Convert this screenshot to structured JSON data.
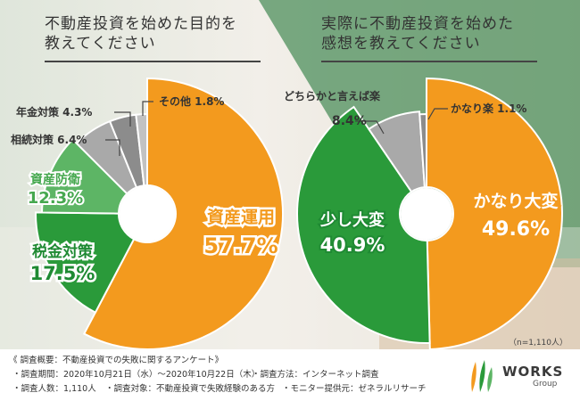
{
  "left_title": [
    "不動産投資を始めた目的を",
    "教えてください"
  ],
  "right_title": [
    "実際に不動産投資を始めた",
    "感想を教えてください"
  ],
  "n_note": "（n=1,110人）",
  "footer": {
    "line1": "《 調査概要：不動産投資での失敗に関するアンケート》",
    "line2a": "・調査期間：2020年10月21日（水）〜2020年10月22日（木）",
    "line2b": "・調査方法：インターネット調査",
    "line3a": "・調査人数：1,110人",
    "line3b": "・調査対象：不動産投資で失敗経験のある方",
    "line3c": "・モニター提供元：ゼネラルリサーチ"
  },
  "logo": {
    "word": "WORKS",
    "sub": "Group"
  },
  "colors": {
    "orange": "#f39a1e",
    "green": "#2a9a3a",
    "lightgreen": "#5db565",
    "gray": "#a9a9a9",
    "darkgray": "#8c8c8c",
    "green_panel": "#4e8f5c"
  },
  "chart_data": [
    {
      "type": "pie",
      "title": "不動産投資を始めた目的を教えてください",
      "slices": [
        {
          "label": "資産運用",
          "value": 57.7,
          "display": "57.7%",
          "color": "#f39a1e"
        },
        {
          "label": "税金対策",
          "value": 17.5,
          "display": "17.5%",
          "color": "#2a9a3a"
        },
        {
          "label": "資産防衛",
          "value": 12.3,
          "display": "12.3%",
          "color": "#5db565"
        },
        {
          "label": "相続対策",
          "value": 6.4,
          "display": "6.4%",
          "color": "#a9a9a9"
        },
        {
          "label": "年金対策",
          "value": 4.3,
          "display": "4.3%",
          "color": "#8c8c8c"
        },
        {
          "label": "その他",
          "value": 1.8,
          "display": "1.8%",
          "color": "#c2c2c2"
        }
      ]
    },
    {
      "type": "pie",
      "title": "実際に不動産投資を始めた感想を教えてください",
      "slices": [
        {
          "label": "かなり大変",
          "value": 49.6,
          "display": "49.6%",
          "color": "#f39a1e"
        },
        {
          "label": "少し大変",
          "value": 40.9,
          "display": "40.9%",
          "color": "#2a9a3a"
        },
        {
          "label": "どちらかと言えば楽",
          "value": 8.4,
          "display": "8.4%",
          "color": "#a9a9a9"
        },
        {
          "label": "かなり楽",
          "value": 1.1,
          "display": "1.1%",
          "color": "#8c8c8c"
        }
      ]
    }
  ]
}
